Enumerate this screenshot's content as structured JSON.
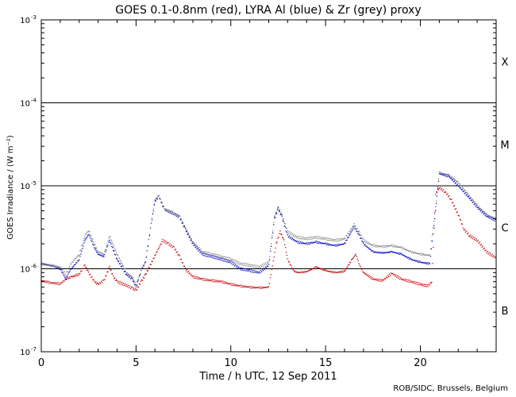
{
  "chart_data": {
    "type": "scatter",
    "title": "GOES 0.1-0.8nm (red), LYRA Al (blue) & Zr (grey) proxy",
    "xlabel": "Time / h UTC, 12 Sep 2011",
    "ylabel": "GOES Irradiance / (W m⁻²)",
    "xlim": [
      0,
      24
    ],
    "ylim": [
      1e-07,
      0.001
    ],
    "yscale": "log",
    "x_ticks": [
      "0",
      "5",
      "10",
      "15",
      "20"
    ],
    "y_ticks": [
      {
        "base": "10",
        "exp": "-7"
      },
      {
        "base": "10",
        "exp": "-6"
      },
      {
        "base": "10",
        "exp": "-5"
      },
      {
        "base": "10",
        "exp": "-4"
      },
      {
        "base": "10",
        "exp": "-3"
      }
    ],
    "flare_classes": [
      "B",
      "C",
      "M",
      "X"
    ],
    "class_lines": [
      1e-06,
      1e-05,
      0.0001
    ],
    "credit": "ROB/SIDC, Brussels, Belgium",
    "series": [
      {
        "color": "#cc0000",
        "points": [
          [
            0,
            7.2e-07
          ],
          [
            0.5,
            6.8e-07
          ],
          [
            1.0,
            6.6e-07
          ],
          [
            1.3,
            7.5e-07
          ],
          [
            1.6,
            8e-07
          ],
          [
            2.0,
            8.6e-07
          ],
          [
            2.3,
            1.1e-06
          ],
          [
            2.5,
            9e-07
          ],
          [
            2.8,
            7e-07
          ],
          [
            3.0,
            6.5e-07
          ],
          [
            3.3,
            7.2e-07
          ],
          [
            3.6,
            1.05e-06
          ],
          [
            3.8,
            8e-07
          ],
          [
            4.0,
            7e-07
          ],
          [
            4.5,
            6.3e-07
          ],
          [
            4.8,
            5.8e-07
          ],
          [
            5.0,
            5.5e-07
          ],
          [
            5.3,
            7.2e-07
          ],
          [
            5.5,
            8.5e-07
          ],
          [
            6.4,
            2.2e-06
          ],
          [
            6.7,
            2e-06
          ],
          [
            7.0,
            1.8e-06
          ],
          [
            7.3,
            1.4e-06
          ],
          [
            7.6,
            1e-06
          ],
          [
            8.0,
            8e-07
          ],
          [
            8.5,
            7.5e-07
          ],
          [
            9.0,
            7.2e-07
          ],
          [
            9.5,
            7e-07
          ],
          [
            10.0,
            6.5e-07
          ],
          [
            10.5,
            6.2e-07
          ],
          [
            11.0,
            6e-07
          ],
          [
            11.5,
            5.9e-07
          ],
          [
            12.0,
            6e-07
          ],
          [
            12.4,
            2e-06
          ],
          [
            12.6,
            2.8e-06
          ],
          [
            12.8,
            2.2e-06
          ],
          [
            13.0,
            1.3e-06
          ],
          [
            13.3,
            9.5e-07
          ],
          [
            13.5,
            9e-07
          ],
          [
            14.0,
            9.2e-07
          ],
          [
            14.5,
            1.05e-06
          ],
          [
            15.0,
            9.5e-07
          ],
          [
            15.5,
            9e-07
          ],
          [
            16.0,
            9.3e-07
          ],
          [
            16.4,
            1.3e-06
          ],
          [
            16.6,
            1.5e-06
          ],
          [
            16.8,
            1.1e-06
          ],
          [
            17.0,
            9e-07
          ],
          [
            17.5,
            7.5e-07
          ],
          [
            18.0,
            7.2e-07
          ],
          [
            18.5,
            8.8e-07
          ],
          [
            19.0,
            7.5e-07
          ],
          [
            19.5,
            7e-07
          ],
          [
            20.0,
            6.5e-07
          ],
          [
            20.4,
            6.2e-07
          ],
          [
            20.6,
            7e-07
          ],
          [
            20.8,
            8e-06
          ],
          [
            21.0,
            9.5e-06
          ],
          [
            21.3,
            8.5e-06
          ],
          [
            21.6,
            7e-06
          ],
          [
            22.0,
            4.5e-06
          ],
          [
            22.3,
            3e-06
          ],
          [
            22.6,
            2.5e-06
          ],
          [
            23.0,
            2.2e-06
          ],
          [
            23.5,
            1.6e-06
          ],
          [
            24.0,
            1.35e-06
          ]
        ]
      },
      {
        "color": "#0000cc",
        "points": [
          [
            0,
            1.15e-06
          ],
          [
            0.5,
            1.1e-06
          ],
          [
            1.0,
            1e-06
          ],
          [
            1.3,
            7.5e-07
          ],
          [
            1.5,
            9.5e-07
          ],
          [
            2.0,
            1.3e-06
          ],
          [
            2.3,
            2.2e-06
          ],
          [
            2.5,
            2.6e-06
          ],
          [
            2.8,
            1.8e-06
          ],
          [
            3.0,
            1.5e-06
          ],
          [
            3.3,
            1.4e-06
          ],
          [
            3.6,
            2.2e-06
          ],
          [
            4.0,
            1.3e-06
          ],
          [
            4.5,
            8.5e-07
          ],
          [
            4.8,
            7.5e-07
          ],
          [
            5.0,
            6e-07
          ],
          [
            5.3,
            1e-06
          ],
          [
            5.5,
            1.2e-06
          ],
          [
            5.8,
            3.5e-06
          ],
          [
            6.0,
            6.5e-06
          ],
          [
            6.2,
            7.5e-06
          ],
          [
            6.5,
            5.2e-06
          ],
          [
            7.0,
            4.6e-06
          ],
          [
            7.3,
            4.2e-06
          ],
          [
            7.6,
            3e-06
          ],
          [
            8.0,
            2e-06
          ],
          [
            8.5,
            1.5e-06
          ],
          [
            9.0,
            1.4e-06
          ],
          [
            9.5,
            1.3e-06
          ],
          [
            10.0,
            1.2e-06
          ],
          [
            10.5,
            1e-06
          ],
          [
            11.0,
            9.5e-07
          ],
          [
            11.5,
            9e-07
          ],
          [
            12.0,
            1.1e-06
          ],
          [
            12.3,
            4e-06
          ],
          [
            12.5,
            5.3e-06
          ],
          [
            12.7,
            4.2e-06
          ],
          [
            13.0,
            2.5e-06
          ],
          [
            13.5,
            2.1e-06
          ],
          [
            14.0,
            2e-06
          ],
          [
            14.5,
            2.1e-06
          ],
          [
            15.0,
            2e-06
          ],
          [
            15.5,
            1.9e-06
          ],
          [
            16.0,
            2e-06
          ],
          [
            16.5,
            3.2e-06
          ],
          [
            16.8,
            2.5e-06
          ],
          [
            17.0,
            2e-06
          ],
          [
            17.5,
            1.6e-06
          ],
          [
            18.0,
            1.55e-06
          ],
          [
            18.5,
            1.6e-06
          ],
          [
            19.0,
            1.5e-06
          ],
          [
            19.5,
            1.3e-06
          ],
          [
            20.0,
            1.2e-06
          ],
          [
            20.5,
            1.15e-06
          ],
          [
            20.8,
            5e-06
          ],
          [
            21.0,
            1.4e-05
          ],
          [
            21.5,
            1.3e-05
          ],
          [
            22.0,
            1e-05
          ],
          [
            22.5,
            7.5e-06
          ],
          [
            23.0,
            5.5e-06
          ],
          [
            23.5,
            4.3e-06
          ],
          [
            24.0,
            3.8e-06
          ]
        ]
      },
      {
        "color": "#808080",
        "points": [
          [
            0,
            1.15e-06
          ],
          [
            0.5,
            1.1e-06
          ],
          [
            1.0,
            1.05e-06
          ],
          [
            1.3,
            8.5e-07
          ],
          [
            1.5,
            1.1e-06
          ],
          [
            2.0,
            1.5e-06
          ],
          [
            2.3,
            2.5e-06
          ],
          [
            2.5,
            2.9e-06
          ],
          [
            2.8,
            2e-06
          ],
          [
            3.0,
            1.6e-06
          ],
          [
            3.3,
            1.5e-06
          ],
          [
            3.6,
            2.5e-06
          ],
          [
            4.0,
            1.5e-06
          ],
          [
            4.5,
            9e-07
          ],
          [
            4.8,
            8e-07
          ],
          [
            5.0,
            6.5e-07
          ],
          [
            5.3,
            1e-06
          ],
          [
            5.5,
            1.2e-06
          ],
          [
            5.8,
            3.6e-06
          ],
          [
            6.0,
            6.8e-06
          ],
          [
            6.2,
            7.6e-06
          ],
          [
            6.5,
            5.3e-06
          ],
          [
            7.0,
            4.7e-06
          ],
          [
            7.3,
            4.3e-06
          ],
          [
            7.6,
            3.1e-06
          ],
          [
            8.0,
            2.1e-06
          ],
          [
            8.5,
            1.6e-06
          ],
          [
            9.0,
            1.5e-06
          ],
          [
            9.5,
            1.4e-06
          ],
          [
            10.0,
            1.3e-06
          ],
          [
            10.5,
            1.15e-06
          ],
          [
            11.0,
            1.1e-06
          ],
          [
            11.5,
            1.05e-06
          ],
          [
            12.0,
            1.2e-06
          ],
          [
            12.3,
            4.2e-06
          ],
          [
            12.5,
            5.5e-06
          ],
          [
            12.7,
            4.4e-06
          ],
          [
            13.0,
            2.8e-06
          ],
          [
            13.5,
            2.4e-06
          ],
          [
            14.0,
            2.3e-06
          ],
          [
            14.5,
            2.4e-06
          ],
          [
            15.0,
            2.3e-06
          ],
          [
            15.5,
            2.2e-06
          ],
          [
            16.0,
            2.3e-06
          ],
          [
            16.5,
            3.4e-06
          ],
          [
            16.8,
            2.7e-06
          ],
          [
            17.0,
            2.2e-06
          ],
          [
            17.5,
            1.9e-06
          ],
          [
            18.0,
            1.85e-06
          ],
          [
            18.5,
            1.9e-06
          ],
          [
            19.0,
            1.8e-06
          ],
          [
            19.5,
            1.6e-06
          ],
          [
            20.0,
            1.5e-06
          ],
          [
            20.5,
            1.45e-06
          ],
          [
            20.8,
            5.5e-06
          ],
          [
            21.0,
            1.45e-05
          ],
          [
            21.5,
            1.35e-05
          ],
          [
            22.0,
            1.1e-05
          ],
          [
            22.5,
            8e-06
          ],
          [
            23.0,
            5.8e-06
          ],
          [
            23.5,
            4.5e-06
          ],
          [
            24.0,
            4e-06
          ]
        ]
      }
    ]
  }
}
